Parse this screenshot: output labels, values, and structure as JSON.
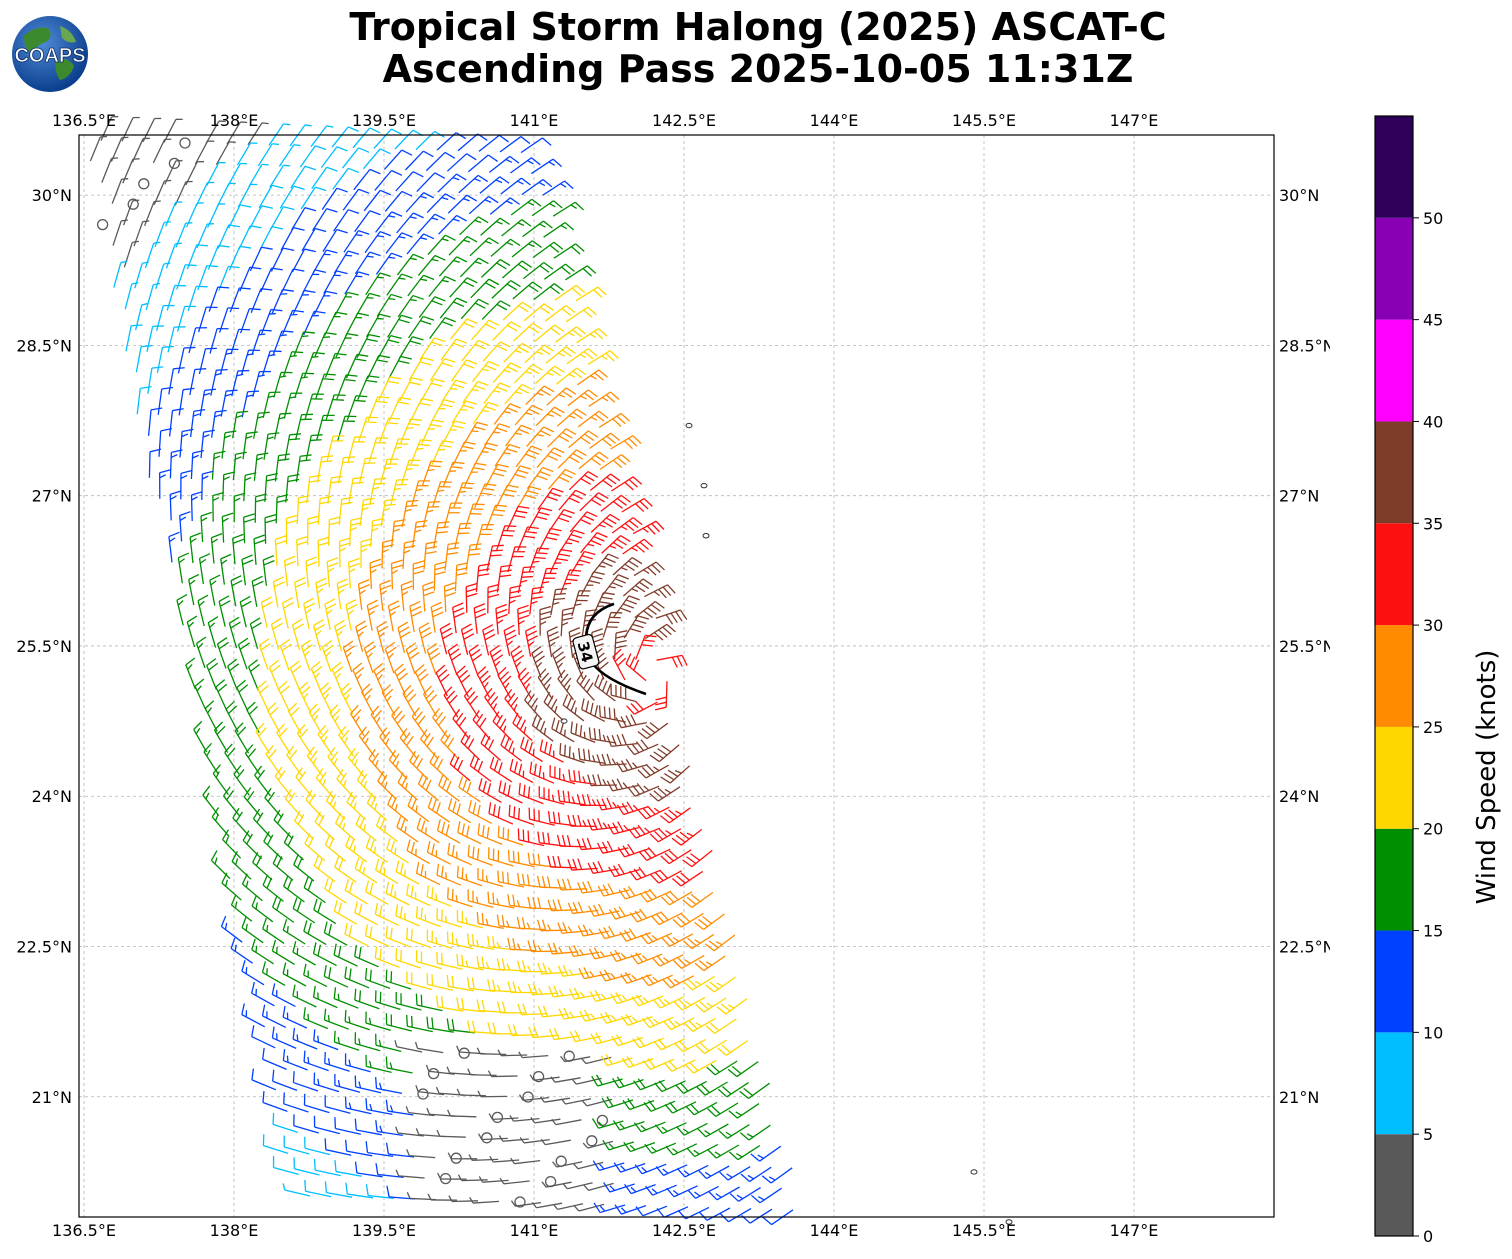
{
  "title": {
    "line1": "Tropical Storm Halong (2025) ASCAT-C",
    "line2": "Ascending Pass 2025-10-05 11:31Z"
  },
  "logo": {
    "text": "COAPS"
  },
  "map": {
    "lon_range": [
      136.45,
      148.4
    ],
    "lat_range": [
      19.8,
      30.6
    ],
    "lon_ticks": [
      "136.5°E",
      "138°E",
      "139.5°E",
      "141°E",
      "142.5°E",
      "144°E",
      "145.5°E",
      "147°E"
    ],
    "lat_ticks": [
      "30°N",
      "28.5°N",
      "27°N",
      "25.5°N",
      "24°N",
      "22.5°N",
      "21°N"
    ],
    "gridlines": "dashed",
    "storm_center": {
      "lon": 142.2,
      "lat": 25.2
    },
    "contour_label": "34",
    "contour_color": "#000000"
  },
  "colorbar": {
    "label": "Wind Speed (knots)",
    "ticks": [
      "0",
      "5",
      "10",
      "15",
      "20",
      "25",
      "30",
      "35",
      "40",
      "45",
      "50"
    ],
    "colors": [
      "#595959",
      "#00bfff",
      "#0040ff",
      "#008f00",
      "#ffd700",
      "#ff8c00",
      "#ff1010",
      "#803c2a",
      "#ff00ff",
      "#8800b4",
      "#2e005a"
    ]
  }
}
